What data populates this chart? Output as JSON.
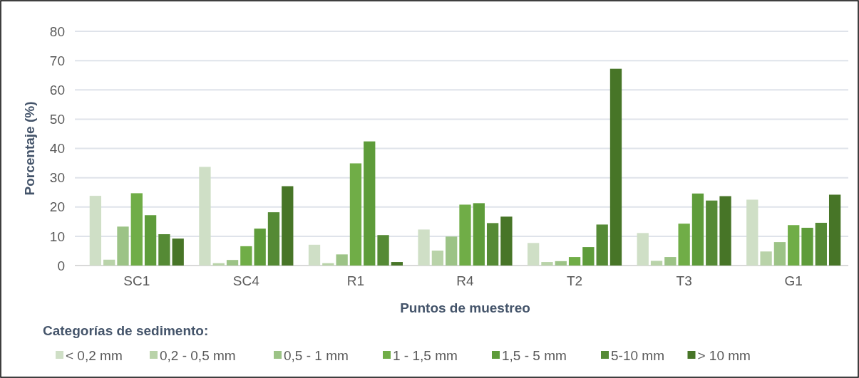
{
  "chart_data": {
    "type": "bar",
    "xlabel": "Puntos de muestreo",
    "ylabel": "Porcentaje (%)",
    "legend_title": "Categorías de sedimento:",
    "legend": "bottom",
    "grid": "y",
    "categories": [
      "SC1",
      "SC4",
      "R1",
      "R4",
      "T2",
      "T3",
      "G1"
    ],
    "ylim": [
      0,
      80
    ],
    "yticks": [
      0,
      10,
      20,
      30,
      40,
      50,
      60,
      70,
      80
    ],
    "series": [
      {
        "name": "< 0,2 mm",
        "color": "#cfdfc6",
        "values": [
          23.8,
          33.7,
          7.1,
          12.3,
          7.7,
          11.1,
          22.5
        ]
      },
      {
        "name": "0,2 - 0,5 mm",
        "color": "#b9d3a9",
        "values": [
          2,
          0.8,
          0.8,
          5.1,
          1.2,
          1.6,
          4.8
        ]
      },
      {
        "name": "0,5 - 1 mm",
        "color": "#9cc386",
        "values": [
          13.3,
          1.9,
          3.8,
          9.9,
          1.5,
          2.9,
          8
        ]
      },
      {
        "name": "1 - 1,5 mm",
        "color": "#70ad47",
        "values": [
          24.7,
          6.6,
          34.9,
          20.8,
          2.9,
          14.3,
          13.8
        ]
      },
      {
        "name": "1,5 - 5 mm",
        "color": "#5e9c3a",
        "values": [
          17.2,
          12.6,
          42.4,
          21.3,
          6.3,
          24.6,
          12.9
        ]
      },
      {
        "name": "5-10 mm",
        "color": "#558a35",
        "values": [
          10.7,
          18.2,
          10.4,
          14.5,
          14,
          22.2,
          14.6
        ]
      },
      {
        "name": "> 10 mm",
        "color": "#477527",
        "values": [
          9.2,
          27.1,
          1.2,
          16.7,
          67.2,
          23.7,
          24.2
        ]
      }
    ]
  }
}
